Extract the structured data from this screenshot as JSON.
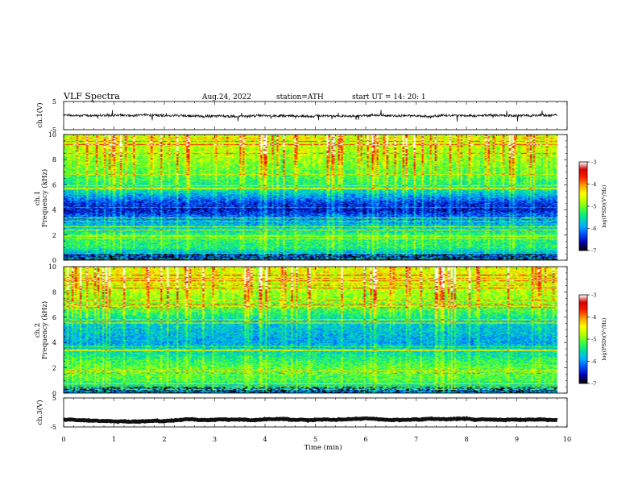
{
  "header": {
    "title": "VLF  Spectra",
    "date": "Aug.24, 2022",
    "station": "station=ATH",
    "start": "start  UT  =    14: 20: 1"
  },
  "colors": {
    "waveform": "#111111",
    "spectrogram_palette": [
      "#000000",
      "#0000b4",
      "#0050ff",
      "#00b4ff",
      "#00e0a0",
      "#3cff3c",
      "#b4ff00",
      "#ffff00",
      "#ffa000",
      "#ff2000",
      "#d40000",
      "#ffffff"
    ]
  },
  "chart_data": [
    {
      "type": "line",
      "name": "ch1-waveform",
      "ylabel": "ch.1(V)",
      "ylim": [
        -5,
        5
      ],
      "y_ticks": [
        "5",
        "-5"
      ],
      "x_range_min": [
        0,
        10
      ],
      "data_end_min": 9.8,
      "approx_level_v": 0,
      "approx_fluctuation_v": 1
    },
    {
      "type": "heatmap",
      "name": "ch1-spectrogram",
      "channel_label": "ch.1",
      "ylabel": "Frequency  (kHz)",
      "ylim_khz": [
        0,
        10
      ],
      "y_ticks": [
        "0",
        "2",
        "4",
        "6",
        "8",
        "10"
      ],
      "x_range_min": [
        0,
        10
      ],
      "data_end_min": 9.8,
      "colorbar": {
        "label": "log(PSD)(V²/Hz)",
        "range": [
          -7,
          -3
        ],
        "ticks": [
          "-3",
          "-4",
          "-5",
          "-6",
          "-7"
        ]
      },
      "approx_log_psd_profile": {
        "freq_khz": [
          0.25,
          1.0,
          2.0,
          2.5,
          3.2,
          4.0,
          4.6,
          5.5,
          6.5,
          7.5,
          8.5,
          9.5
        ],
        "log_psd": [
          -6.3,
          -5.3,
          -5.2,
          -5.6,
          -6.0,
          -6.6,
          -6.4,
          -5.6,
          -5.2,
          -5.0,
          -4.8,
          -4.7
        ]
      }
    },
    {
      "type": "heatmap",
      "name": "ch2-spectrogram",
      "channel_label": "ch.2",
      "ylabel": "Frequency  (kHz)",
      "ylim_khz": [
        0,
        10
      ],
      "y_ticks": [
        "0",
        "2",
        "4",
        "6",
        "8",
        "10"
      ],
      "x_range_min": [
        0,
        10
      ],
      "data_end_min": 9.8,
      "colorbar": {
        "label": "log(PSD)(V²/Hz)",
        "range": [
          -7,
          -3
        ],
        "ticks": [
          "-3",
          "-4",
          "-5",
          "-6",
          "-7"
        ]
      },
      "approx_log_psd_profile": {
        "freq_khz": [
          0.25,
          1.0,
          2.0,
          2.5,
          3.2,
          4.0,
          4.6,
          5.5,
          6.5,
          7.5,
          8.5,
          9.5
        ],
        "log_psd": [
          -6.0,
          -5.1,
          -5.0,
          -5.2,
          -5.5,
          -5.9,
          -5.8,
          -5.7,
          -5.2,
          -4.9,
          -4.7,
          -4.6
        ]
      }
    },
    {
      "type": "line",
      "name": "ch3-waveform",
      "ylabel": "ch.3(V)",
      "ylim": [
        -5,
        5
      ],
      "y_ticks": [
        "5",
        "-5"
      ],
      "x_range_min": [
        0,
        10
      ],
      "data_end_min": 9.8,
      "approx_level_v": -2.5,
      "approx_fluctuation_v": 0.15
    }
  ],
  "x_axis": {
    "label": "Time  (min)",
    "ticks": [
      "0",
      "1",
      "2",
      "3",
      "4",
      "5",
      "6",
      "7",
      "8",
      "9",
      "10"
    ]
  }
}
